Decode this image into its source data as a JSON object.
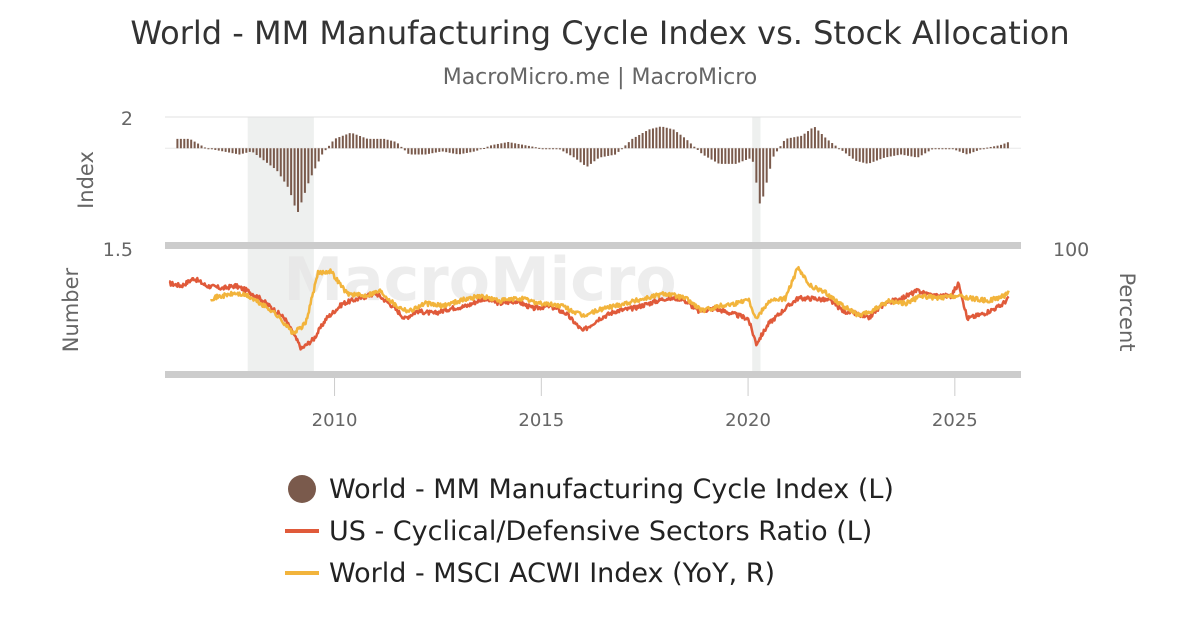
{
  "header": {
    "title": "World - MM Manufacturing Cycle Index vs. Stock Allocation",
    "subtitle": "MacroMicro.me | MacroMicro"
  },
  "watermark": "MacroMicro",
  "colors": {
    "mfg_index": "#7a5a4c",
    "cyc_def": "#e05a3a",
    "acwi": "#f2b43c",
    "recession_band": "#eef0ef",
    "panel_divider": "#cccccc"
  },
  "chart_data": {
    "type": "line",
    "top_panel": {
      "ylabel": "Index",
      "left_ticks": [
        "2"
      ],
      "baseline": 1.9,
      "ylim": [
        1.6,
        2.0
      ]
    },
    "bottom_panel": {
      "ylabel_left": "Number",
      "ylabel_right": "Percent",
      "left_ticks": [
        "1.5"
      ],
      "right_ticks": [
        "100"
      ]
    },
    "x_ticks": [
      "2010",
      "2015",
      "2020",
      "2025"
    ],
    "xlim": [
      2005.9,
      2026.6
    ],
    "recession_shading": [
      [
        2007.9,
        2009.5
      ],
      [
        2020.1,
        2020.3
      ]
    ],
    "series": [
      {
        "name": "World - MM Manufacturing Cycle Index (L)",
        "type": "bar",
        "x": [
          2006.2,
          2006.5,
          2006.9,
          2007.3,
          2007.7,
          2008.0,
          2008.3,
          2008.6,
          2008.9,
          2009.1,
          2009.4,
          2009.7,
          2010.0,
          2010.4,
          2010.8,
          2011.2,
          2011.5,
          2011.8,
          2012.2,
          2012.6,
          2013.0,
          2013.4,
          2013.8,
          2014.2,
          2014.6,
          2015.0,
          2015.4,
          2015.8,
          2016.1,
          2016.4,
          2016.8,
          2017.2,
          2017.6,
          2017.9,
          2018.2,
          2018.5,
          2018.9,
          2019.3,
          2019.7,
          2020.1,
          2020.3,
          2020.6,
          2020.9,
          2021.3,
          2021.6,
          2021.9,
          2022.2,
          2022.6,
          2022.9,
          2023.3,
          2023.7,
          2024.1,
          2024.5,
          2024.9,
          2025.3,
          2025.7,
          2026.1,
          2026.3
        ],
        "values": [
          1.93,
          1.93,
          1.9,
          1.89,
          1.88,
          1.89,
          1.86,
          1.83,
          1.77,
          1.69,
          1.8,
          1.88,
          1.93,
          1.95,
          1.93,
          1.93,
          1.92,
          1.88,
          1.88,
          1.89,
          1.88,
          1.89,
          1.91,
          1.92,
          1.91,
          1.9,
          1.9,
          1.87,
          1.84,
          1.87,
          1.88,
          1.93,
          1.96,
          1.97,
          1.96,
          1.93,
          1.88,
          1.85,
          1.85,
          1.87,
          1.71,
          1.87,
          1.93,
          1.94,
          1.97,
          1.93,
          1.9,
          1.86,
          1.85,
          1.87,
          1.88,
          1.87,
          1.9,
          1.9,
          1.88,
          1.9,
          1.91,
          1.92
        ]
      },
      {
        "name": "US - Cyclical/Defensive Sectors Ratio (L)",
        "type": "line",
        "x": [
          2006.0,
          2006.3,
          2006.6,
          2006.9,
          2007.3,
          2007.6,
          2007.9,
          2008.2,
          2008.5,
          2008.8,
          2009.0,
          2009.2,
          2009.5,
          2009.8,
          2010.2,
          2010.6,
          2011.0,
          2011.4,
          2011.7,
          2012.0,
          2012.4,
          2012.8,
          2013.2,
          2013.6,
          2014.0,
          2014.4,
          2014.8,
          2015.2,
          2015.6,
          2016.0,
          2016.4,
          2016.8,
          2017.2,
          2017.6,
          2018.0,
          2018.4,
          2018.8,
          2019.2,
          2019.6,
          2020.0,
          2020.2,
          2020.5,
          2020.9,
          2021.2,
          2021.6,
          2022.0,
          2022.3,
          2022.6,
          2022.9,
          2023.3,
          2023.7,
          2024.1,
          2024.5,
          2024.9,
          2025.1,
          2025.3,
          2025.7,
          2026.1,
          2026.3
        ],
        "values": [
          1.36,
          1.35,
          1.38,
          1.35,
          1.34,
          1.35,
          1.33,
          1.3,
          1.26,
          1.22,
          1.16,
          1.1,
          1.14,
          1.22,
          1.28,
          1.3,
          1.32,
          1.27,
          1.22,
          1.25,
          1.24,
          1.26,
          1.27,
          1.3,
          1.28,
          1.29,
          1.26,
          1.27,
          1.24,
          1.17,
          1.22,
          1.25,
          1.26,
          1.28,
          1.3,
          1.3,
          1.25,
          1.26,
          1.24,
          1.22,
          1.12,
          1.2,
          1.26,
          1.3,
          1.3,
          1.29,
          1.25,
          1.24,
          1.22,
          1.28,
          1.3,
          1.33,
          1.31,
          1.31,
          1.36,
          1.22,
          1.24,
          1.27,
          1.3
        ]
      },
      {
        "name": "World - MSCI ACWI Index (YoY, R)",
        "type": "line",
        "x": [
          2007.0,
          2007.3,
          2007.6,
          2007.9,
          2008.2,
          2008.5,
          2008.8,
          2009.0,
          2009.3,
          2009.6,
          2009.9,
          2010.3,
          2010.7,
          2011.1,
          2011.5,
          2011.8,
          2012.2,
          2012.6,
          2013.0,
          2013.5,
          2014.0,
          2014.5,
          2015.0,
          2015.5,
          2016.0,
          2016.5,
          2017.0,
          2017.5,
          2018.0,
          2018.5,
          2018.9,
          2019.3,
          2019.7,
          2020.0,
          2020.2,
          2020.5,
          2020.9,
          2021.2,
          2021.5,
          2021.9,
          2022.3,
          2022.7,
          2023.0,
          2023.4,
          2023.8,
          2024.2,
          2024.6,
          2025.0,
          2025.4,
          2025.8,
          2026.2,
          2026.3
        ],
        "values": [
          1.3,
          1.31,
          1.32,
          1.31,
          1.28,
          1.25,
          1.2,
          1.16,
          1.2,
          1.4,
          1.41,
          1.32,
          1.31,
          1.33,
          1.27,
          1.25,
          1.28,
          1.27,
          1.29,
          1.31,
          1.29,
          1.3,
          1.28,
          1.27,
          1.23,
          1.26,
          1.28,
          1.3,
          1.32,
          1.3,
          1.25,
          1.27,
          1.28,
          1.3,
          1.22,
          1.29,
          1.3,
          1.42,
          1.35,
          1.32,
          1.27,
          1.23,
          1.25,
          1.29,
          1.28,
          1.31,
          1.3,
          1.31,
          1.3,
          1.29,
          1.31,
          1.33
        ]
      }
    ]
  },
  "legend": {
    "items": [
      {
        "label": "World - MM Manufacturing Cycle Index (L)",
        "color": "#7a5a4c",
        "symbol": "circle"
      },
      {
        "label": "US - Cyclical/Defensive Sectors Ratio (L)",
        "color": "#e05a3a",
        "symbol": "line"
      },
      {
        "label": "World - MSCI ACWI Index (YoY, R)",
        "color": "#f2b43c",
        "symbol": "line"
      }
    ]
  }
}
